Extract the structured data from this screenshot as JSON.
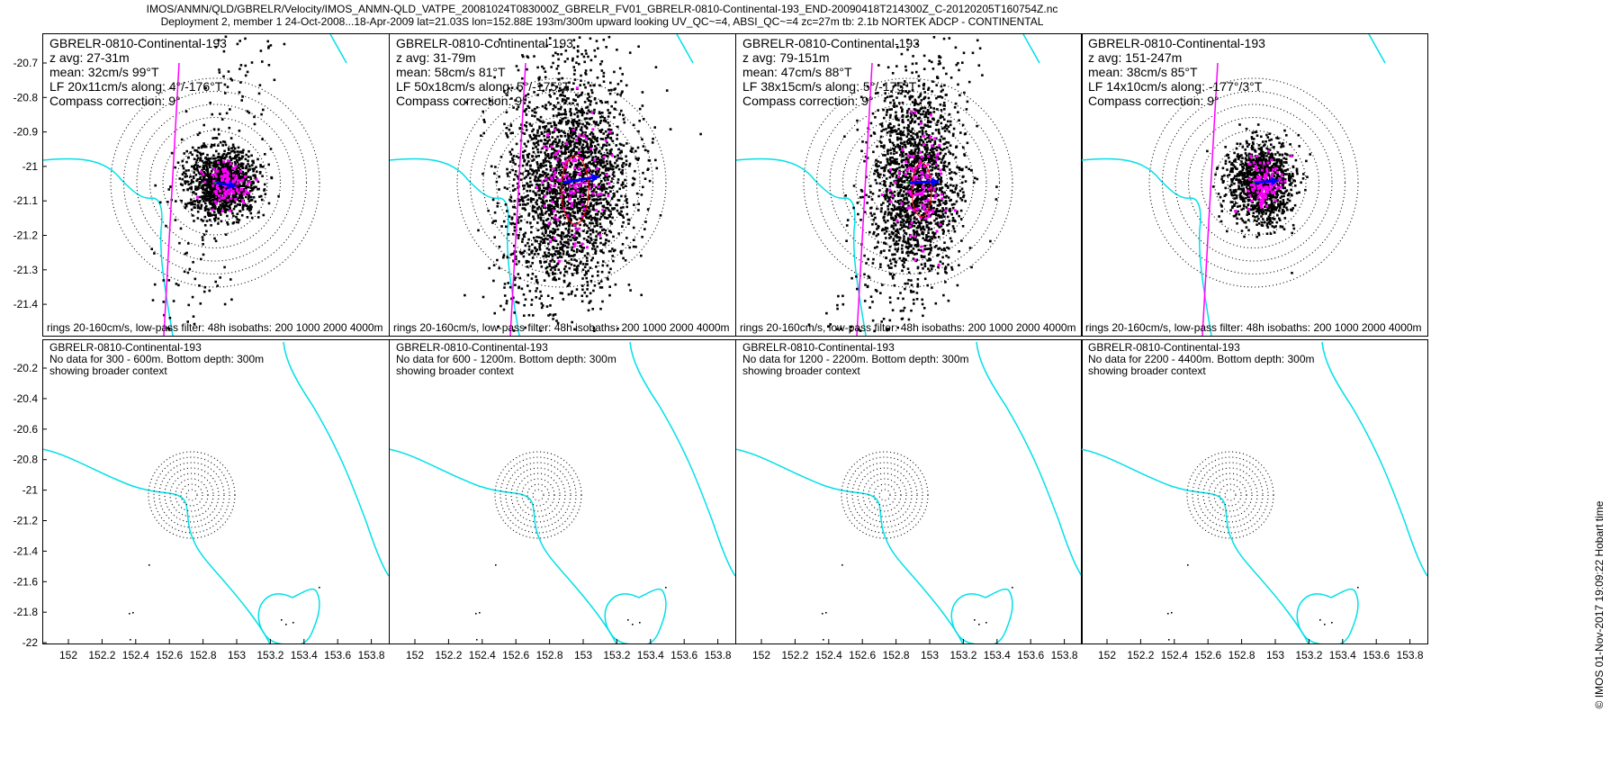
{
  "chart_data": {
    "type": "scatter",
    "title_line1": "IMOS/ANMN/QLD/GBRELR/Velocity/IMOS_ANMN-QLD_VATPE_20081024T083000Z_GBRELR_FV01_GBRELR-0810-Continental-193_END-20090418T214300Z_C-20120205T160754Z.nc",
    "title_line2": "Deployment 2, member 1 24-Oct-2008...18-Apr-2009 lat=21.03S lon=152.88E 193m/300m upward looking UV_QC~=4, ABSI_QC~=4 zc=27m tb: 2.1b NORTEK ADCP - CONTINENTAL",
    "side_label": "© IMOS 01-Nov-2017 19:09:22 Hobart time",
    "colors": {
      "coast": "#00e0e8",
      "points": "#000000",
      "lowpass": "#ff00ff",
      "mean_arrow": "#0000ff",
      "ellipse": "#ff0000"
    },
    "top_panels": [
      {
        "name": "GBRELR-0810-Continental-193",
        "zavg": "z avg: 27-31m",
        "mean": "mean: 32cm/s 99°T",
        "lf": "LF 20x11cm/s along: 4°/-176°T",
        "compass": "Compass correction: 9°",
        "footer": "rings 20-160cm/s, low-pass filter: 48h isobaths: 200 1000 2000 4000m",
        "mean_speed_cms": 32,
        "mean_dir_degT": 99
      },
      {
        "name": "GBRELR-0810-Continental-193",
        "zavg": "z avg: 31-79m",
        "mean": "mean: 58cm/s 81°T",
        "lf": "LF 50x18cm/s along: 5°/-175°T",
        "compass": "Compass correction: 9°",
        "footer": "rings 20-160cm/s, low-pass filter: 48h isobaths: 200 1000 2000 4000m",
        "mean_speed_cms": 58,
        "mean_dir_degT": 81
      },
      {
        "name": "GBRELR-0810-Continental-193",
        "zavg": "z avg: 79-151m",
        "mean": "mean: 47cm/s 88°T",
        "lf": "LF 38x15cm/s along: 5°/-175°T",
        "compass": "Compass correction: 9°",
        "footer": "rings 20-160cm/s, low-pass filter: 48h isobaths: 200 1000 2000 4000m",
        "mean_speed_cms": 47,
        "mean_dir_degT": 88
      },
      {
        "name": "GBRELR-0810-Continental-193",
        "zavg": "z avg: 151-247m",
        "mean": "mean: 38cm/s 85°T",
        "lf": "LF 14x10cm/s along: -177°/3°T",
        "compass": "Compass correction: 9°",
        "footer": "rings 20-160cm/s, low-pass filter: 48h isobaths: 200 1000 2000 4000m",
        "mean_speed_cms": 38,
        "mean_dir_degT": 85
      }
    ],
    "bottom_panels": [
      {
        "name": "GBRELR-0810-Continental-193",
        "nodata": "No data for 300 - 600m. Bottom depth: 300m",
        "context": "showing broader context"
      },
      {
        "name": "GBRELR-0810-Continental-193",
        "nodata": "No data for 600 - 1200m. Bottom depth: 300m",
        "context": "showing broader context"
      },
      {
        "name": "GBRELR-0810-Continental-193",
        "nodata": "No data for 1200 - 2200m. Bottom depth: 300m",
        "context": "showing broader context"
      },
      {
        "name": "GBRELR-0810-Continental-193",
        "nodata": "No data for 2200 - 4400m. Bottom depth: 300m",
        "context": "showing broader context"
      }
    ],
    "station": {
      "lon": 152.88,
      "lat": -21.03
    },
    "rings_cms": [
      20,
      40,
      60,
      80,
      100,
      120,
      140,
      160
    ],
    "top_xlim": [
      152.6,
      153.16
    ],
    "top_ylim": [
      -21.43,
      -20.66
    ],
    "top_yticks": [
      "-20.7",
      "-20.8",
      "-20.9",
      "-21",
      "-21.1",
      "-21.2",
      "-21.3",
      "-21.4"
    ],
    "bottom_xlim": [
      151.9,
      153.96
    ],
    "bottom_ylim": [
      -22.03,
      -20.02
    ],
    "bottom_yticks": [
      "-20.2",
      "-20.4",
      "-20.6",
      "-20.8",
      "-21",
      "-21.2",
      "-21.4",
      "-21.6",
      "-21.8",
      "-22"
    ],
    "bottom_xticks": [
      "152",
      "152.2",
      "152.4",
      "152.6",
      "152.8",
      "153",
      "153.2",
      "153.4",
      "153.6",
      "153.8"
    ]
  }
}
